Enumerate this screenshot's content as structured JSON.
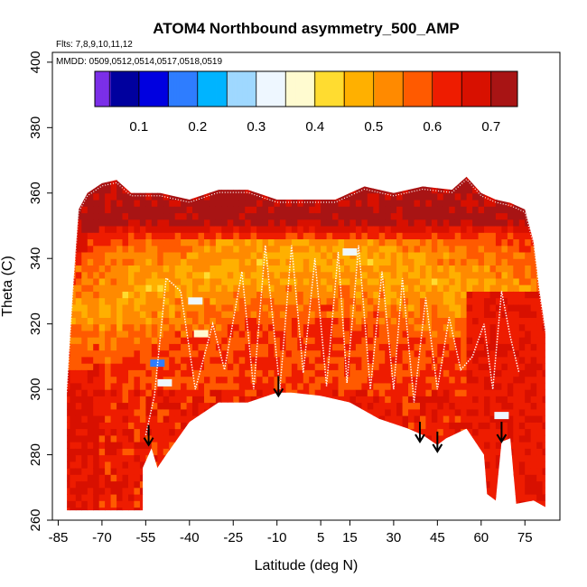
{
  "chart_data": {
    "type": "heatmap",
    "title": "ATOM4 Northbound asymmetry_500_AMP",
    "subtitles": [
      "Flts: 7,8,9,10,11,12",
      "MMDD: 0509,0512,0514,0517,0518,0519"
    ],
    "xlabel": "Latitude (deg N)",
    "ylabel": "Theta (C)",
    "xlim": [
      -87,
      87
    ],
    "ylim": [
      260,
      403
    ],
    "x_ticks": [
      -85,
      -70,
      -55,
      -40,
      -25,
      -10,
      5,
      15,
      30,
      45,
      60,
      75
    ],
    "x_tick_labels": [
      "-85",
      "-70",
      "-55",
      "-40",
      "-25",
      "-10",
      "5",
      "15",
      "30",
      "45",
      "60",
      "75"
    ],
    "y_ticks": [
      260,
      280,
      300,
      320,
      340,
      360,
      380,
      400
    ],
    "y_tick_labels": [
      "260",
      "280",
      "300",
      "320",
      "340",
      "360",
      "380",
      "400"
    ],
    "colorbar": {
      "range": [
        0.025,
        0.745
      ],
      "ticks": [
        0.1,
        0.2,
        0.3,
        0.4,
        0.5,
        0.6,
        0.7
      ],
      "tick_labels": [
        "0.1",
        "0.2",
        "0.3",
        "0.4",
        "0.5",
        "0.6",
        "0.7"
      ],
      "colors": [
        "#7b2fe8",
        "#00009e",
        "#0000e0",
        "#2e7dff",
        "#00b4ff",
        "#9fd8ff",
        "#eef7ff",
        "#fffbd0",
        "#ffdc30",
        "#ffb000",
        "#ff8a00",
        "#ff5a00",
        "#ee1c00",
        "#d81000",
        "#a81414"
      ],
      "breaks": [
        0.05,
        0.1,
        0.15,
        0.2,
        0.25,
        0.3,
        0.35,
        0.4,
        0.45,
        0.5,
        0.55,
        0.6,
        0.65,
        0.7
      ]
    },
    "lower_boundary": [
      [
        -82,
        263
      ],
      [
        -56,
        263
      ],
      [
        -56,
        276
      ],
      [
        -53,
        282
      ],
      [
        -51,
        276
      ],
      [
        -48,
        280
      ],
      [
        -40,
        290
      ],
      [
        -30,
        296
      ],
      [
        -20,
        296
      ],
      [
        -10,
        299
      ],
      [
        -5,
        299
      ],
      [
        5,
        298
      ],
      [
        15,
        296
      ],
      [
        25,
        291
      ],
      [
        35,
        288
      ],
      [
        40,
        286
      ],
      [
        45,
        283
      ],
      [
        48,
        285
      ],
      [
        55,
        288
      ],
      [
        61,
        280
      ],
      [
        62,
        268
      ],
      [
        65,
        266
      ],
      [
        67,
        284
      ],
      [
        70,
        285
      ],
      [
        72,
        265
      ],
      [
        78,
        266
      ],
      [
        82,
        264
      ]
    ],
    "upper_boundary": [
      [
        -82,
        300
      ],
      [
        -80,
        330
      ],
      [
        -78,
        355
      ],
      [
        -75,
        360
      ],
      [
        -70,
        363
      ],
      [
        -65,
        364
      ],
      [
        -60,
        360
      ],
      [
        -50,
        360
      ],
      [
        -40,
        358
      ],
      [
        -30,
        361
      ],
      [
        -20,
        361
      ],
      [
        -10,
        358
      ],
      [
        0,
        358
      ],
      [
        10,
        358
      ],
      [
        20,
        362
      ],
      [
        30,
        360
      ],
      [
        40,
        362
      ],
      [
        50,
        361
      ],
      [
        55,
        365
      ],
      [
        60,
        360
      ],
      [
        65,
        358
      ],
      [
        70,
        357
      ],
      [
        75,
        355
      ],
      [
        78,
        345
      ],
      [
        80,
        330
      ],
      [
        82,
        318
      ]
    ],
    "tropopause_dips": [
      [
        -55,
        286
      ],
      [
        -52,
        298
      ],
      [
        -48,
        334
      ],
      [
        -43,
        330
      ],
      [
        -38,
        300
      ],
      [
        -32,
        320
      ],
      [
        -28,
        306
      ],
      [
        -22,
        336
      ],
      [
        -18,
        300
      ],
      [
        -14,
        344
      ],
      [
        -9,
        300
      ],
      [
        -5,
        344
      ],
      [
        -1,
        305
      ],
      [
        3,
        340
      ],
      [
        7,
        301
      ],
      [
        11,
        342
      ],
      [
        14,
        302
      ],
      [
        18,
        344
      ],
      [
        22,
        300
      ],
      [
        26,
        336
      ],
      [
        30,
        300
      ],
      [
        33,
        334
      ],
      [
        37,
        296
      ],
      [
        41,
        328
      ],
      [
        45,
        300
      ],
      [
        49,
        322
      ],
      [
        53,
        306
      ],
      [
        57,
        310
      ],
      [
        61,
        320
      ],
      [
        64,
        300
      ],
      [
        67,
        330
      ],
      [
        70,
        316
      ],
      [
        73,
        305
      ]
    ],
    "arrows": [
      [
        -54,
        283
      ],
      [
        -9.5,
        298
      ],
      [
        39,
        284
      ],
      [
        45,
        281
      ],
      [
        67,
        284
      ]
    ],
    "blue_patches": [
      [
        -51,
        308,
        0.17
      ],
      [
        -48.5,
        302,
        0.32
      ],
      [
        -38,
        327,
        0.33
      ],
      [
        -36,
        317,
        0.37
      ],
      [
        15,
        342,
        0.3
      ],
      [
        67,
        292,
        0.3
      ]
    ]
  }
}
